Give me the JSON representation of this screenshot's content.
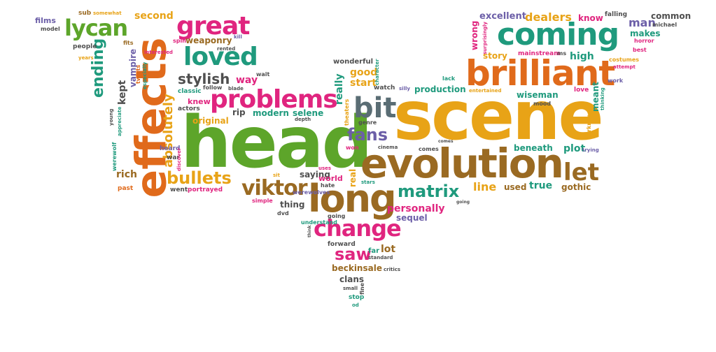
{
  "palette": {
    "orange": "#e06a1b",
    "green": "#5da52a",
    "magenta": "#e0257f",
    "teal": "#1f9a7d",
    "gold": "#e8a317",
    "brown": "#9a6a22",
    "slate": "#5a6d74",
    "purple": "#6c5fa8",
    "gray": "#4f4f4f"
  },
  "words": [
    {
      "text": "head",
      "color": "green"
    },
    {
      "text": "scene",
      "color": "gold"
    },
    {
      "text": "evolution",
      "color": "brown"
    },
    {
      "text": "effects",
      "color": "orange"
    },
    {
      "text": "brilliant",
      "color": "orange"
    },
    {
      "text": "coming",
      "color": "teal"
    },
    {
      "text": "long",
      "color": "brown"
    },
    {
      "text": "problems",
      "color": "magenta"
    },
    {
      "text": "great",
      "color": "magenta"
    },
    {
      "text": "lycan",
      "color": "green"
    },
    {
      "text": "loved",
      "color": "teal"
    },
    {
      "text": "bit",
      "color": "slate"
    },
    {
      "text": "change",
      "color": "magenta"
    },
    {
      "text": "viktor",
      "color": "brown"
    },
    {
      "text": "let",
      "color": "brown"
    },
    {
      "text": "matrix",
      "color": "teal"
    },
    {
      "text": "bullets",
      "color": "gold"
    },
    {
      "text": "stylish",
      "color": "gray"
    },
    {
      "text": "fans",
      "color": "purple"
    },
    {
      "text": "saw",
      "color": "magenta"
    },
    {
      "text": "ending",
      "color": "teal"
    },
    {
      "text": "absolutely",
      "color": "gold"
    },
    {
      "text": "kept",
      "color": "gray"
    },
    {
      "text": "vampire",
      "color": "purple"
    },
    {
      "text": "second",
      "color": "gold"
    },
    {
      "text": "weaponry",
      "color": "brown"
    },
    {
      "text": "dealers",
      "color": "gold"
    },
    {
      "text": "excellent",
      "color": "purple"
    },
    {
      "text": "know",
      "color": "magenta"
    },
    {
      "text": "man",
      "color": "purple"
    },
    {
      "text": "makes",
      "color": "teal"
    },
    {
      "text": "common",
      "color": "gray"
    },
    {
      "text": "wrong",
      "color": "magenta"
    },
    {
      "text": "story",
      "color": "gold"
    },
    {
      "text": "mainstream",
      "color": "magenta"
    },
    {
      "text": "high",
      "color": "teal"
    },
    {
      "text": "production",
      "color": "teal"
    },
    {
      "text": "wiseman",
      "color": "teal"
    },
    {
      "text": "meant",
      "color": "teal"
    },
    {
      "text": "good",
      "color": "gold"
    },
    {
      "text": "start",
      "color": "gold"
    },
    {
      "text": "really",
      "color": "teal"
    },
    {
      "text": "way",
      "color": "magenta"
    },
    {
      "text": "rip",
      "color": "gray"
    },
    {
      "text": "modern",
      "color": "teal"
    },
    {
      "text": "selene",
      "color": "teal"
    },
    {
      "text": "knew",
      "color": "magenta"
    },
    {
      "text": "original",
      "color": "gold"
    },
    {
      "text": "classic",
      "color": "teal"
    },
    {
      "text": "actors",
      "color": "gray"
    },
    {
      "text": "plot",
      "color": "teal"
    },
    {
      "text": "beneath",
      "color": "teal"
    },
    {
      "text": "line",
      "color": "gold"
    },
    {
      "text": "used",
      "color": "brown"
    },
    {
      "text": "true",
      "color": "teal"
    },
    {
      "text": "gothic",
      "color": "brown"
    },
    {
      "text": "personally",
      "color": "magenta"
    },
    {
      "text": "sequel",
      "color": "purple"
    },
    {
      "text": "world",
      "color": "magenta"
    },
    {
      "text": "real",
      "color": "gold"
    },
    {
      "text": "thing",
      "color": "gray"
    },
    {
      "text": "rich",
      "color": "brown"
    },
    {
      "text": "forward",
      "color": "gray"
    },
    {
      "text": "far",
      "color": "teal"
    },
    {
      "text": "lot",
      "color": "brown"
    },
    {
      "text": "beckinsale",
      "color": "brown"
    },
    {
      "text": "clans",
      "color": "gray"
    },
    {
      "text": "stop",
      "color": "teal"
    },
    {
      "text": "films",
      "color": "purple"
    },
    {
      "text": "model",
      "color": "gray"
    },
    {
      "text": "people",
      "color": "gray"
    },
    {
      "text": "years",
      "color": "gold"
    },
    {
      "text": "sub",
      "color": "brown"
    },
    {
      "text": "somewhat",
      "color": "gold"
    },
    {
      "text": "spin",
      "color": "magenta"
    },
    {
      "text": "rented",
      "color": "gray"
    },
    {
      "text": "kill",
      "color": "purple"
    },
    {
      "text": "fits",
      "color": "brown"
    },
    {
      "text": "interested",
      "color": "magenta"
    },
    {
      "text": "especially",
      "color": "teal"
    },
    {
      "text": "twists",
      "color": "orange"
    },
    {
      "text": "follow",
      "color": "gray"
    },
    {
      "text": "blade",
      "color": "gray"
    },
    {
      "text": "wait",
      "color": "gray"
    },
    {
      "text": "wonderful",
      "color": "gray"
    },
    {
      "text": "character",
      "color": "teal"
    },
    {
      "text": "watch",
      "color": "gray"
    },
    {
      "text": "silly",
      "color": "purple"
    },
    {
      "text": "theaters",
      "color": "gold"
    },
    {
      "text": "genre",
      "color": "gray"
    },
    {
      "text": "cool",
      "color": "teal"
    },
    {
      "text": "depth",
      "color": "gray"
    },
    {
      "text": "won",
      "color": "magenta"
    },
    {
      "text": "cinema",
      "color": "gray"
    },
    {
      "text": "comes",
      "color": "gray"
    },
    {
      "text": "trying",
      "color": "purple"
    },
    {
      "text": "falling",
      "color": "gray"
    },
    {
      "text": "michael",
      "color": "gray"
    },
    {
      "text": "horror",
      "color": "magenta"
    },
    {
      "text": "best",
      "color": "magenta"
    },
    {
      "text": "costumes",
      "color": "gold"
    },
    {
      "text": "attempt",
      "color": "magenta"
    },
    {
      "text": "work",
      "color": "purple"
    },
    {
      "text": "love",
      "color": "magenta"
    },
    {
      "text": "mood",
      "color": "gray"
    },
    {
      "text": "thinking",
      "color": "teal"
    },
    {
      "text": "darkness",
      "color": "gold"
    },
    {
      "text": "entertained",
      "color": "gold"
    },
    {
      "text": "lack",
      "color": "teal"
    },
    {
      "text": "ms",
      "color": "gray"
    },
    {
      "text": "surprisingly",
      "color": "magenta"
    },
    {
      "text": "young",
      "color": "gray"
    },
    {
      "text": "appreciate",
      "color": "teal"
    },
    {
      "text": "werewolf",
      "color": "teal"
    },
    {
      "text": "heard",
      "color": "purple"
    },
    {
      "text": "war",
      "color": "gray"
    },
    {
      "text": "discover",
      "color": "magenta"
    },
    {
      "text": "past",
      "color": "orange"
    },
    {
      "text": "went",
      "color": "gray"
    },
    {
      "text": "portrayed",
      "color": "magenta"
    },
    {
      "text": "confused",
      "color": "gray"
    },
    {
      "text": "sit",
      "color": "gold"
    },
    {
      "text": "saying",
      "color": "gray"
    },
    {
      "text": "uses",
      "color": "magenta"
    },
    {
      "text": "hate",
      "color": "gray"
    },
    {
      "text": "werewolves",
      "color": "purple"
    },
    {
      "text": "stars",
      "color": "teal"
    },
    {
      "text": "simple",
      "color": "magenta"
    },
    {
      "text": "dvd",
      "color": "gray"
    },
    {
      "text": "understand",
      "color": "teal"
    },
    {
      "text": "going",
      "color": "gray"
    },
    {
      "text": "standard",
      "color": "gray"
    },
    {
      "text": "design",
      "color": "magenta"
    },
    {
      "text": "critics",
      "color": "gray"
    },
    {
      "text": "small",
      "color": "gray"
    },
    {
      "text": "od",
      "color": "teal"
    },
    {
      "text": "fine",
      "color": "gray"
    },
    {
      "text": "think",
      "color": "gray"
    }
  ]
}
